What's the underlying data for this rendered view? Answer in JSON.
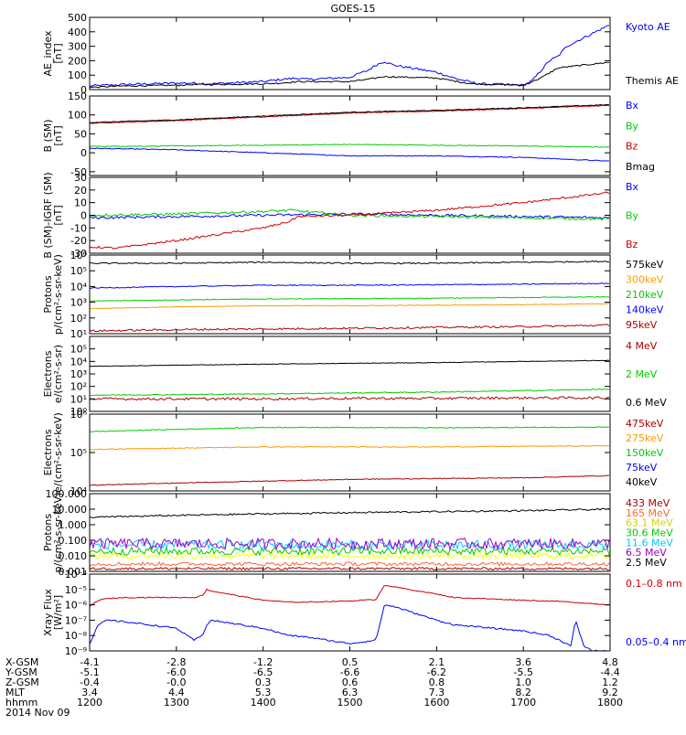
{
  "title": "GOES-15",
  "colors": {
    "blue": "#0000ff",
    "red": "#cc0000",
    "green": "#00cc00",
    "black": "#000000",
    "orange": "#ff9900",
    "cyan": "#00c8ff",
    "yellow": "#ffff00",
    "purple": "#a000c8",
    "darkred": "#aa0000"
  },
  "chart_data": [
    {
      "type": "line",
      "ylabel": [
        "AE_index",
        "[nT]"
      ],
      "ylim": [
        0,
        500
      ],
      "scale": "linear",
      "yticks": [
        0,
        100,
        200,
        300,
        400,
        500
      ],
      "ytick_labels": [
        "0",
        "100",
        "200",
        "300",
        "400",
        "500"
      ],
      "series": [
        {
          "name": "Kyoto AE",
          "color": "#0000ff",
          "x": [
            1200,
            1220,
            1240,
            1300,
            1320,
            1340,
            1400,
            1420,
            1440,
            1450,
            1500,
            1510,
            1520,
            1530,
            1540,
            1550,
            1600,
            1620,
            1640,
            1650,
            1700,
            1710,
            1720,
            1730,
            1740,
            1750,
            1800
          ],
          "y": [
            25,
            30,
            35,
            45,
            45,
            40,
            55,
            70,
            80,
            70,
            85,
            110,
            130,
            170,
            195,
            170,
            120,
            80,
            50,
            40,
            30,
            60,
            130,
            200,
            230,
            300,
            450
          ],
          "noise": 8
        },
        {
          "name": "Themis AE",
          "color": "#000000",
          "x": [
            1200,
            1220,
            1240,
            1300,
            1320,
            1340,
            1400,
            1420,
            1440,
            1500,
            1520,
            1540,
            1600,
            1620,
            1640,
            1700,
            1720,
            1740,
            1800
          ],
          "y": [
            15,
            20,
            25,
            30,
            35,
            35,
            40,
            45,
            55,
            55,
            70,
            90,
            80,
            60,
            40,
            30,
            80,
            150,
            190
          ],
          "noise": 5
        }
      ]
    },
    {
      "type": "line",
      "ylabel": [
        "B (SM)",
        "[nT]"
      ],
      "ylim": [
        -60,
        150
      ],
      "scale": "linear",
      "yticks": [
        -50,
        0,
        50,
        100,
        150
      ],
      "ytick_labels": [
        "-50",
        "0",
        "50",
        "100",
        "150"
      ],
      "series": [
        {
          "name": "Bx",
          "color": "#0000ff",
          "x": [
            1200,
            1300,
            1400,
            1500,
            1600,
            1700,
            1800
          ],
          "y": [
            12,
            8,
            0,
            -8,
            -8,
            -12,
            -22
          ],
          "noise": 1
        },
        {
          "name": "By",
          "color": "#00cc00",
          "x": [
            1200,
            1300,
            1400,
            1500,
            1600,
            1700,
            1800
          ],
          "y": [
            17,
            18,
            20,
            22,
            20,
            18,
            15
          ],
          "noise": 1
        },
        {
          "name": "Bz",
          "color": "#cc0000",
          "x": [
            1200,
            1300,
            1400,
            1500,
            1600,
            1700,
            1800
          ],
          "y": [
            78,
            85,
            95,
            105,
            110,
            117,
            125
          ],
          "noise": 1
        },
        {
          "name": "Bmag",
          "color": "#000000",
          "x": [
            1200,
            1300,
            1400,
            1500,
            1600,
            1700,
            1800
          ],
          "y": [
            80,
            87,
            97,
            107,
            112,
            119,
            127
          ],
          "noise": 1
        }
      ]
    },
    {
      "type": "line",
      "ylabel": [
        "B (SM)-IGRF (SM)",
        "[nT]"
      ],
      "ylim": [
        -30,
        30
      ],
      "scale": "linear",
      "yticks": [
        -30,
        -20,
        -10,
        0,
        10,
        20,
        30
      ],
      "ytick_labels": [
        "-30",
        "-20",
        "-10",
        "0",
        "10",
        "20",
        "30"
      ],
      "series": [
        {
          "name": "Bx",
          "color": "#0000ff",
          "x": [
            1200,
            1300,
            1400,
            1500,
            1600,
            1700,
            1800
          ],
          "y": [
            -2,
            -1,
            0,
            1,
            0,
            -1,
            -2
          ],
          "noise": 1
        },
        {
          "name": "By",
          "color": "#00cc00",
          "x": [
            1200,
            1300,
            1400,
            1430,
            1500,
            1600,
            1700,
            1800
          ],
          "y": [
            0,
            1,
            3,
            4,
            0,
            -1,
            -2,
            -3
          ],
          "noise": 1
        },
        {
          "name": "Bz",
          "color": "#cc0000",
          "x": [
            1200,
            1230,
            1300,
            1400,
            1430,
            1440,
            1500,
            1600,
            1700,
            1800
          ],
          "y": [
            -25,
            -26,
            -20,
            -10,
            -5,
            -1,
            0,
            4,
            10,
            18
          ],
          "noise": 0.8
        }
      ]
    },
    {
      "type": "line",
      "ylabel": [
        "Protons",
        "p/(cm²-s-sr-keV)"
      ],
      "ylim": [
        10,
        1000000
      ],
      "scale": "log",
      "yticks": [
        10,
        100,
        1000,
        10000,
        100000,
        1000000
      ],
      "ytick_labels": [
        "10¹",
        "10²",
        "10³",
        "10⁴",
        "10⁵",
        "10⁶"
      ],
      "series": [
        {
          "name": "575keV",
          "color": "#000000",
          "x": [
            1200,
            1300,
            1400,
            1500,
            1600,
            1700,
            1800
          ],
          "y": [
            300000,
            300000,
            350000,
            300000,
            300000,
            350000,
            400000
          ],
          "noise": 0.04
        },
        {
          "name": "300keV",
          "color": "#ff9900",
          "x": [
            1200,
            1300,
            1400,
            1500,
            1600,
            1700,
            1800
          ],
          "y": [
            400,
            500,
            600,
            600,
            650,
            700,
            800
          ],
          "noise": 0.02
        },
        {
          "name": "210keV",
          "color": "#00cc00",
          "x": [
            1200,
            1300,
            1400,
            1500,
            1600,
            1700,
            1800
          ],
          "y": [
            1200,
            1400,
            1600,
            1700,
            1800,
            2000,
            2200
          ],
          "noise": 0.02
        },
        {
          "name": "140keV",
          "color": "#0000ff",
          "x": [
            1200,
            1300,
            1400,
            1500,
            1600,
            1700,
            1800
          ],
          "y": [
            8000,
            10000,
            12000,
            12000,
            13000,
            14000,
            16000
          ],
          "noise": 0.03
        },
        {
          "name": "95keV",
          "color": "#aa0000",
          "x": [
            1200,
            1300,
            1400,
            1500,
            1600,
            1700,
            1800
          ],
          "y": [
            15,
            18,
            20,
            22,
            25,
            28,
            35
          ],
          "noise": 0.06
        }
      ]
    },
    {
      "type": "line",
      "ylabel": [
        "Electrons",
        "e/(cm²-s-sr)"
      ],
      "ylim": [
        1,
        1000000
      ],
      "scale": "log",
      "yticks": [
        1,
        10,
        100,
        1000,
        10000,
        100000
      ],
      "ytick_labels": [
        "10⁰",
        "10¹",
        "10²",
        "10³",
        "10⁴",
        "10⁵"
      ],
      "series": [
        {
          "name": "4 MeV",
          "color": "#aa0000",
          "x": [
            1200,
            1300,
            1400,
            1500,
            1600,
            1700,
            1800
          ],
          "y": [
            10,
            10,
            10,
            11,
            11,
            12,
            12
          ],
          "noise": 0.1
        },
        {
          "name": "2 MeV",
          "color": "#00cc00",
          "x": [
            1200,
            1300,
            1400,
            1500,
            1600,
            1700,
            1800
          ],
          "y": [
            20,
            22,
            25,
            30,
            35,
            45,
            60
          ],
          "noise": 0.04
        },
        {
          "name": "0.6 MeV",
          "color": "#000000",
          "x": [
            1200,
            1300,
            1400,
            1500,
            1600,
            1700,
            1800
          ],
          "y": [
            4000,
            5000,
            6000,
            7000,
            8000,
            10000,
            12000
          ],
          "noise": 0.02
        }
      ]
    },
    {
      "type": "line",
      "ylabel": [
        "Electrons",
        "e/(cm²-s-sr-keV)"
      ],
      "ylim": [
        10000,
        1000000
      ],
      "scale": "log",
      "yticks": [
        10000,
        100000,
        1000000
      ],
      "ytick_labels": [
        "10⁴",
        "10⁵",
        "10⁶"
      ],
      "series": [
        {
          "name": "475keV",
          "color": "#aa0000",
          "x": [
            1200,
            1300,
            1400,
            1500,
            1600,
            1700,
            1800
          ],
          "y": [
            14000,
            16000,
            18000,
            20000,
            21000,
            22000,
            25000
          ],
          "noise": 0.01
        },
        {
          "name": "275keV",
          "color": "#ff9900",
          "x": [
            1200,
            1300,
            1400,
            1500,
            1600,
            1700,
            1800
          ],
          "y": [
            120000,
            130000,
            140000,
            140000,
            140000,
            145000,
            150000
          ],
          "noise": 0.01
        },
        {
          "name": "150keV",
          "color": "#00cc00",
          "x": [
            1200,
            1300,
            1400,
            1500,
            1600,
            1700,
            1800
          ],
          "y": [
            350000,
            400000,
            450000,
            450000,
            440000,
            450000,
            460000
          ],
          "noise": 0.01
        },
        {
          "name": "75keV",
          "color": "#0000ff",
          "x": [
            1200,
            1800
          ],
          "y": [
            1000000,
            1000000
          ],
          "noise": 0
        },
        {
          "name": "40keV",
          "color": "#000000",
          "x": [
            1200,
            1800
          ],
          "y": [
            1000000,
            1000000
          ],
          "noise": 0
        }
      ]
    },
    {
      "type": "line",
      "ylabel": [
        "Protons",
        "p/(cm²-s-sr-keV)"
      ],
      "ylim": [
        0.001,
        100
      ],
      "scale": "log",
      "yticks": [
        0.001,
        0.01,
        0.1,
        1,
        10,
        100
      ],
      "ytick_labels": [
        "0.001",
        "0.010",
        "0.100",
        "1.000",
        "10.000",
        "100.000"
      ],
      "series": [
        {
          "name": "433 MeV",
          "color": "#aa0000",
          "x": [
            1200,
            1800
          ],
          "y": [
            0.0015,
            0.0015
          ],
          "noise": 0.08
        },
        {
          "name": "165 MeV",
          "color": "#ff6633",
          "x": [
            1200,
            1800
          ],
          "y": [
            0.003,
            0.003
          ],
          "noise": 0.12
        },
        {
          "name": "63.1 MeV",
          "color": "#ffff00",
          "x": [
            1200,
            1800
          ],
          "y": [
            0.01,
            0.01
          ],
          "noise": 0.2
        },
        {
          "name": "30.6 MeV",
          "color": "#00cc00",
          "x": [
            1200,
            1800
          ],
          "y": [
            0.02,
            0.02
          ],
          "noise": 0.25
        },
        {
          "name": "11.6 MeV",
          "color": "#00c8ff",
          "x": [
            1200,
            1800
          ],
          "y": [
            0.05,
            0.05
          ],
          "noise": 0.3
        },
        {
          "name": "6.5 MeV",
          "color": "#a000c8",
          "x": [
            1200,
            1800
          ],
          "y": [
            0.06,
            0.06
          ],
          "noise": 0.35
        },
        {
          "name": "2.5 MeV",
          "color": "#000000",
          "x": [
            1200,
            1300,
            1400,
            1500,
            1600,
            1700,
            1800
          ],
          "y": [
            3,
            4,
            5,
            6,
            7,
            8,
            10
          ],
          "noise": 0.05
        }
      ]
    },
    {
      "type": "line",
      "ylabel": [
        "Xray Flux",
        "[W/m²]"
      ],
      "ylim": [
        1e-09,
        0.0001
      ],
      "scale": "log",
      "yticks": [
        1e-09,
        1e-08,
        1e-07,
        1e-06,
        1e-05,
        0.0001
      ],
      "ytick_labels": [
        "10⁻⁹",
        "10⁻⁸",
        "10⁻⁷",
        "10⁻⁶",
        "10⁻⁵",
        "10⁻⁴"
      ],
      "series": [
        {
          "name": "0.1–0.8 nm",
          "color": "#cc0000",
          "x": [
            1200,
            1210,
            1220,
            1240,
            1300,
            1320,
            1330,
            1335,
            1340,
            1400,
            1430,
            1450,
            1500,
            1530,
            1540,
            1550,
            1600,
            1620,
            1700,
            1740,
            1800
          ],
          "y": [
            8e-07,
            2e-06,
            2.5e-06,
            3e-06,
            3e-06,
            3e-06,
            4e-06,
            1e-05,
            8e-06,
            2e-06,
            1.5e-06,
            1.5e-06,
            1.8e-06,
            2.2e-06,
            2e-05,
            1.5e-05,
            5e-06,
            3e-06,
            2e-06,
            1.7e-06,
            1e-06
          ],
          "noise": 0.03
        },
        {
          "name": "0.05–0.4 nm",
          "color": "#0000ff",
          "x": [
            1200,
            1210,
            1220,
            1240,
            1300,
            1320,
            1330,
            1335,
            1340,
            1400,
            1430,
            1450,
            1500,
            1530,
            1540,
            1550,
            1600,
            1620,
            1700,
            1730,
            1750,
            1755,
            1760,
            1770,
            1780,
            1800
          ],
          "y": [
            3e-09,
            5e-08,
            1e-07,
            8e-08,
            3e-08,
            5e-09,
            1e-08,
            5e-08,
            1e-07,
            3e-08,
            1e-08,
            8e-09,
            3e-09,
            5e-09,
            1e-06,
            8e-07,
            1e-07,
            5e-08,
            2e-08,
            1e-08,
            3e-09,
            2e-09,
            1e-07,
            2e-09,
            1e-09,
            1e-09
          ],
          "noise": 0.05
        }
      ]
    }
  ],
  "x_axis": {
    "xlim": [
      1200,
      1800
    ],
    "rows": [
      {
        "label": "X-GSM",
        "values": [
          "-4.1",
          "-2.8",
          "-1.2",
          "0.5",
          "2.1",
          "3.6",
          "4.8"
        ]
      },
      {
        "label": "Y-GSM",
        "values": [
          "-5.1",
          "-6.0",
          "-6.5",
          "-6.6",
          "-6.2",
          "-5.5",
          "-4.4"
        ]
      },
      {
        "label": "Z-GSM",
        "values": [
          "-0.4",
          "-0.0",
          "0.3",
          "0.6",
          "0.8",
          "1.0",
          "1.2"
        ]
      },
      {
        "label": "MLT",
        "values": [
          "3.4",
          "4.4",
          "5.3",
          "6.3",
          "7.3",
          "8.2",
          "9.2"
        ]
      },
      {
        "label": "hhmm",
        "values": [
          "1200",
          "1300",
          "1400",
          "1500",
          "1600",
          "1700",
          "1800"
        ]
      }
    ],
    "date": "2014 Nov 09"
  }
}
